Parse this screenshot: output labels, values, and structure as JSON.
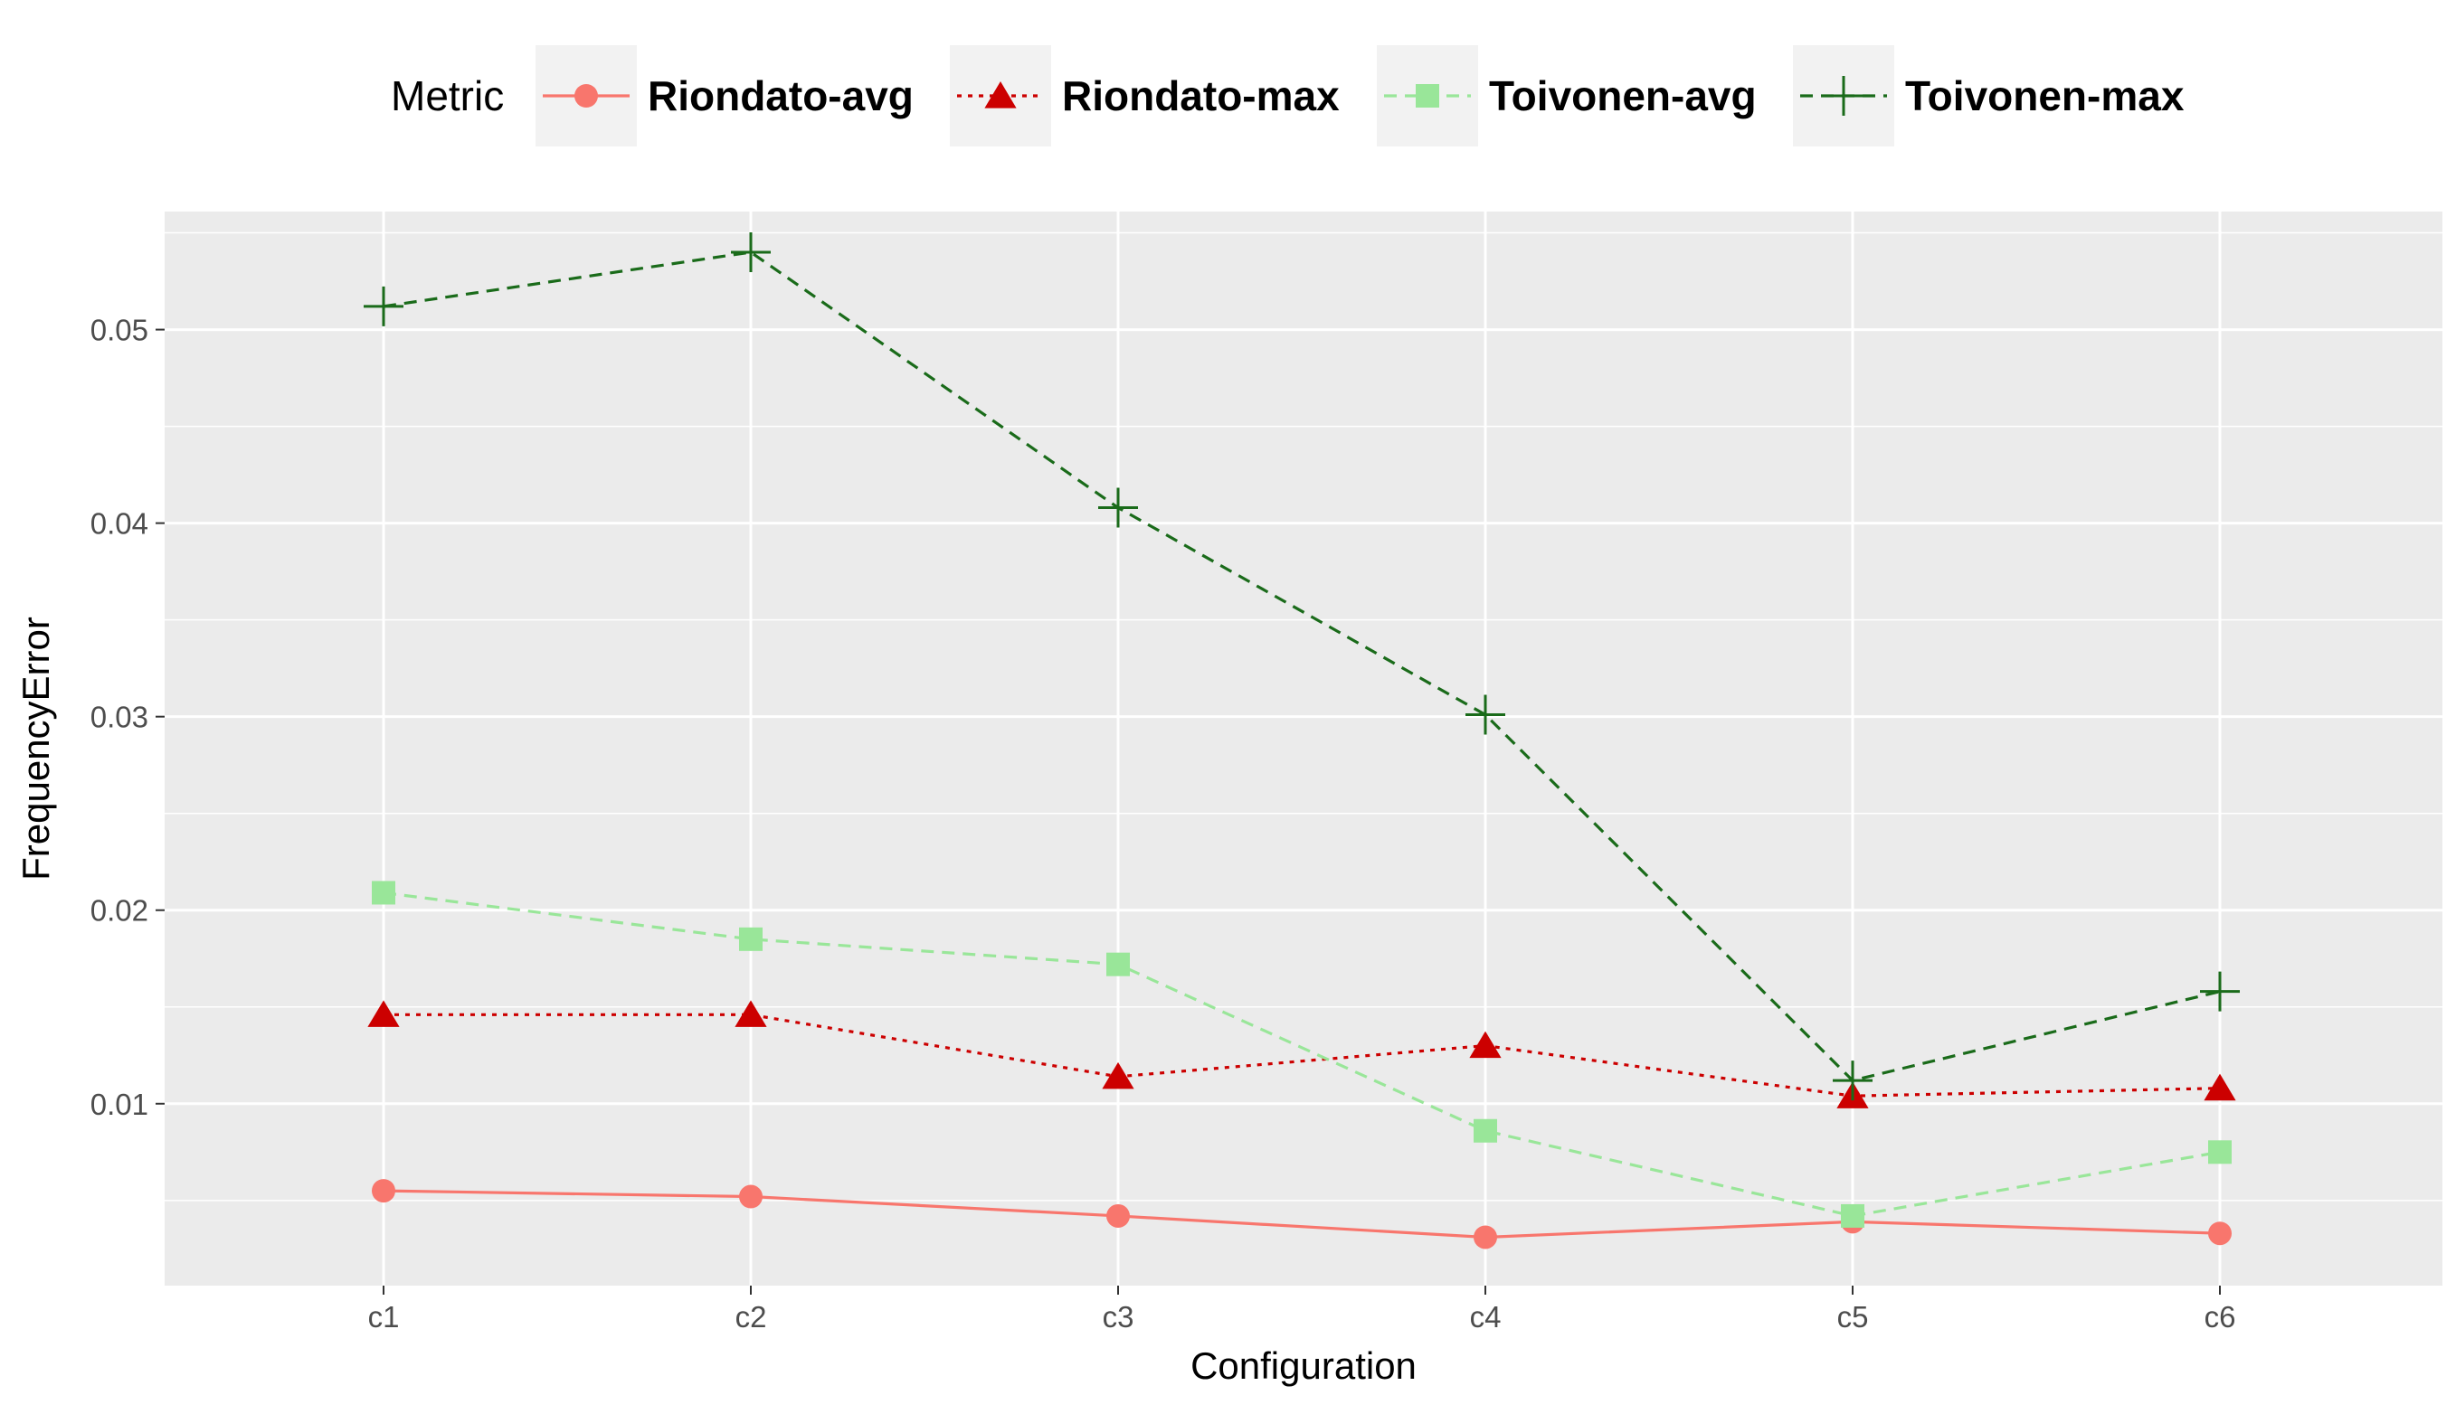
{
  "chart_data": {
    "type": "line",
    "xlabel": "Configuration",
    "ylabel": "FrequencyError",
    "categories": [
      "c1",
      "c2",
      "c3",
      "c4",
      "c5",
      "c6"
    ],
    "ylim": [
      0.0006,
      0.0561
    ],
    "yticks": [
      0.01,
      0.02,
      0.03,
      0.04,
      0.05
    ],
    "ytick_labels": [
      "0.01",
      "0.02",
      "0.03",
      "0.04",
      "0.05"
    ],
    "grid": true,
    "legend": {
      "title": "Metric",
      "position": "top"
    },
    "series": [
      {
        "name": "Riondato-avg",
        "color": "#f8766d",
        "linetype": "solid",
        "marker": "circle",
        "values": [
          0.0055,
          0.0052,
          0.0042,
          0.0031,
          0.0039,
          0.0033
        ]
      },
      {
        "name": "Riondato-max",
        "color": "#cc0000",
        "linetype": "dotted",
        "marker": "triangle",
        "values": [
          0.0146,
          0.0146,
          0.0114,
          0.013,
          0.0104,
          0.0108
        ]
      },
      {
        "name": "Toivonen-avg",
        "color": "#99e699",
        "linetype": "dashed",
        "marker": "square",
        "values": [
          0.0209,
          0.0185,
          0.0172,
          0.0086,
          0.0042,
          0.0075
        ]
      },
      {
        "name": "Toivonen-max",
        "color": "#1a6b1a",
        "linetype": "dashed",
        "marker": "plus",
        "values": [
          0.0512,
          0.054,
          0.0408,
          0.0301,
          0.0112,
          0.0158
        ]
      }
    ]
  }
}
